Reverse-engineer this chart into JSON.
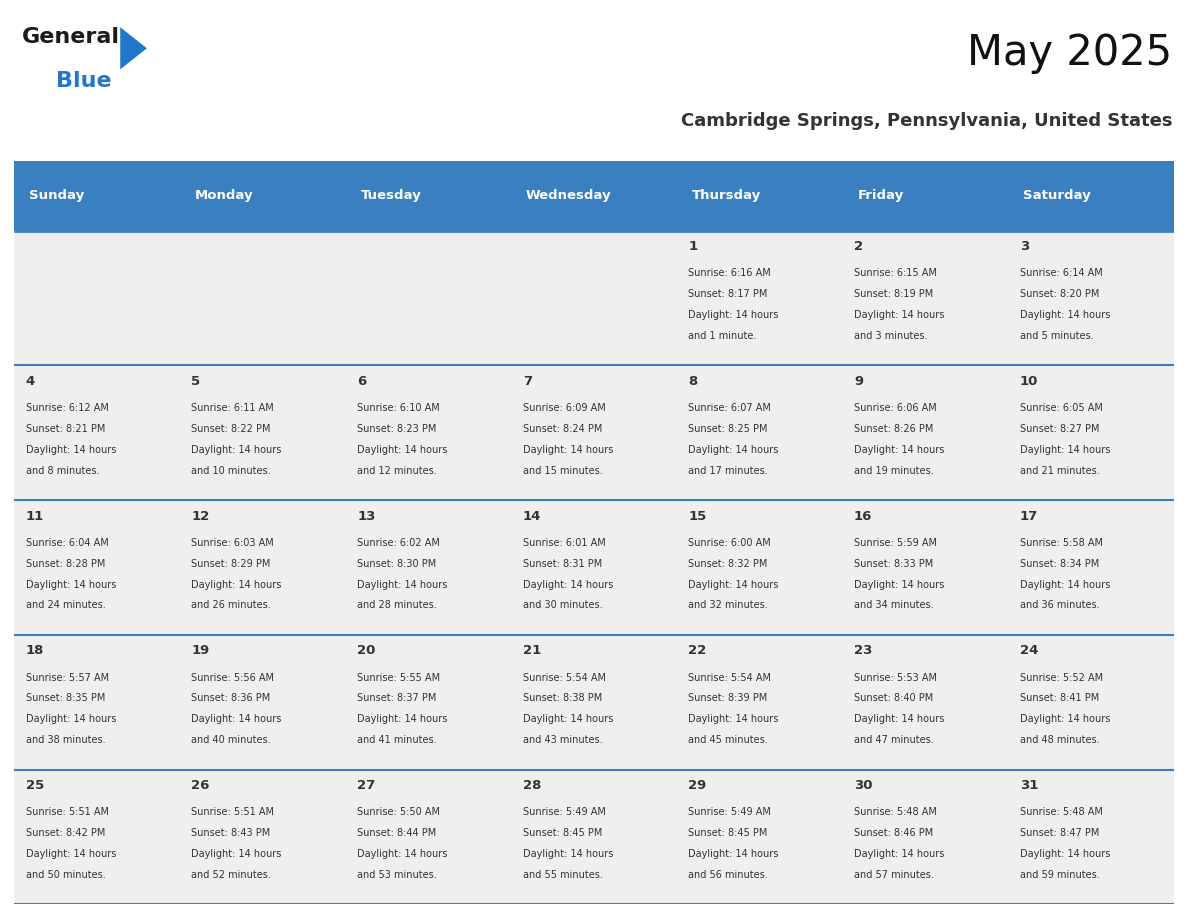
{
  "title": "May 2025",
  "subtitle": "Cambridge Springs, Pennsylvania, United States",
  "header_bg": "#3a7fbf",
  "header_text_color": "#ffffff",
  "row_bg": "#efefef",
  "cell_border_color": "#3a7fbf",
  "day_text_color": "#333333",
  "info_text_color": "#333333",
  "day_names": [
    "Sunday",
    "Monday",
    "Tuesday",
    "Wednesday",
    "Thursday",
    "Friday",
    "Saturday"
  ],
  "days": [
    {
      "day": 1,
      "col": 4,
      "row": 0,
      "sunrise": "6:16 AM",
      "sunset": "8:17 PM",
      "daylight": "14 hours and 1 minute."
    },
    {
      "day": 2,
      "col": 5,
      "row": 0,
      "sunrise": "6:15 AM",
      "sunset": "8:19 PM",
      "daylight": "14 hours and 3 minutes."
    },
    {
      "day": 3,
      "col": 6,
      "row": 0,
      "sunrise": "6:14 AM",
      "sunset": "8:20 PM",
      "daylight": "14 hours and 5 minutes."
    },
    {
      "day": 4,
      "col": 0,
      "row": 1,
      "sunrise": "6:12 AM",
      "sunset": "8:21 PM",
      "daylight": "14 hours and 8 minutes."
    },
    {
      "day": 5,
      "col": 1,
      "row": 1,
      "sunrise": "6:11 AM",
      "sunset": "8:22 PM",
      "daylight": "14 hours and 10 minutes."
    },
    {
      "day": 6,
      "col": 2,
      "row": 1,
      "sunrise": "6:10 AM",
      "sunset": "8:23 PM",
      "daylight": "14 hours and 12 minutes."
    },
    {
      "day": 7,
      "col": 3,
      "row": 1,
      "sunrise": "6:09 AM",
      "sunset": "8:24 PM",
      "daylight": "14 hours and 15 minutes."
    },
    {
      "day": 8,
      "col": 4,
      "row": 1,
      "sunrise": "6:07 AM",
      "sunset": "8:25 PM",
      "daylight": "14 hours and 17 minutes."
    },
    {
      "day": 9,
      "col": 5,
      "row": 1,
      "sunrise": "6:06 AM",
      "sunset": "8:26 PM",
      "daylight": "14 hours and 19 minutes."
    },
    {
      "day": 10,
      "col": 6,
      "row": 1,
      "sunrise": "6:05 AM",
      "sunset": "8:27 PM",
      "daylight": "14 hours and 21 minutes."
    },
    {
      "day": 11,
      "col": 0,
      "row": 2,
      "sunrise": "6:04 AM",
      "sunset": "8:28 PM",
      "daylight": "14 hours and 24 minutes."
    },
    {
      "day": 12,
      "col": 1,
      "row": 2,
      "sunrise": "6:03 AM",
      "sunset": "8:29 PM",
      "daylight": "14 hours and 26 minutes."
    },
    {
      "day": 13,
      "col": 2,
      "row": 2,
      "sunrise": "6:02 AM",
      "sunset": "8:30 PM",
      "daylight": "14 hours and 28 minutes."
    },
    {
      "day": 14,
      "col": 3,
      "row": 2,
      "sunrise": "6:01 AM",
      "sunset": "8:31 PM",
      "daylight": "14 hours and 30 minutes."
    },
    {
      "day": 15,
      "col": 4,
      "row": 2,
      "sunrise": "6:00 AM",
      "sunset": "8:32 PM",
      "daylight": "14 hours and 32 minutes."
    },
    {
      "day": 16,
      "col": 5,
      "row": 2,
      "sunrise": "5:59 AM",
      "sunset": "8:33 PM",
      "daylight": "14 hours and 34 minutes."
    },
    {
      "day": 17,
      "col": 6,
      "row": 2,
      "sunrise": "5:58 AM",
      "sunset": "8:34 PM",
      "daylight": "14 hours and 36 minutes."
    },
    {
      "day": 18,
      "col": 0,
      "row": 3,
      "sunrise": "5:57 AM",
      "sunset": "8:35 PM",
      "daylight": "14 hours and 38 minutes."
    },
    {
      "day": 19,
      "col": 1,
      "row": 3,
      "sunrise": "5:56 AM",
      "sunset": "8:36 PM",
      "daylight": "14 hours and 40 minutes."
    },
    {
      "day": 20,
      "col": 2,
      "row": 3,
      "sunrise": "5:55 AM",
      "sunset": "8:37 PM",
      "daylight": "14 hours and 41 minutes."
    },
    {
      "day": 21,
      "col": 3,
      "row": 3,
      "sunrise": "5:54 AM",
      "sunset": "8:38 PM",
      "daylight": "14 hours and 43 minutes."
    },
    {
      "day": 22,
      "col": 4,
      "row": 3,
      "sunrise": "5:54 AM",
      "sunset": "8:39 PM",
      "daylight": "14 hours and 45 minutes."
    },
    {
      "day": 23,
      "col": 5,
      "row": 3,
      "sunrise": "5:53 AM",
      "sunset": "8:40 PM",
      "daylight": "14 hours and 47 minutes."
    },
    {
      "day": 24,
      "col": 6,
      "row": 3,
      "sunrise": "5:52 AM",
      "sunset": "8:41 PM",
      "daylight": "14 hours and 48 minutes."
    },
    {
      "day": 25,
      "col": 0,
      "row": 4,
      "sunrise": "5:51 AM",
      "sunset": "8:42 PM",
      "daylight": "14 hours and 50 minutes."
    },
    {
      "day": 26,
      "col": 1,
      "row": 4,
      "sunrise": "5:51 AM",
      "sunset": "8:43 PM",
      "daylight": "14 hours and 52 minutes."
    },
    {
      "day": 27,
      "col": 2,
      "row": 4,
      "sunrise": "5:50 AM",
      "sunset": "8:44 PM",
      "daylight": "14 hours and 53 minutes."
    },
    {
      "day": 28,
      "col": 3,
      "row": 4,
      "sunrise": "5:49 AM",
      "sunset": "8:45 PM",
      "daylight": "14 hours and 55 minutes."
    },
    {
      "day": 29,
      "col": 4,
      "row": 4,
      "sunrise": "5:49 AM",
      "sunset": "8:45 PM",
      "daylight": "14 hours and 56 minutes."
    },
    {
      "day": 30,
      "col": 5,
      "row": 4,
      "sunrise": "5:48 AM",
      "sunset": "8:46 PM",
      "daylight": "14 hours and 57 minutes."
    },
    {
      "day": 31,
      "col": 6,
      "row": 4,
      "sunrise": "5:48 AM",
      "sunset": "8:47 PM",
      "daylight": "14 hours and 59 minutes."
    }
  ],
  "num_rows": 5,
  "num_cols": 7,
  "logo_general_color": "#1a1a1a",
  "logo_blue_color": "#2277cc",
  "logo_triangle_color": "#2277cc"
}
